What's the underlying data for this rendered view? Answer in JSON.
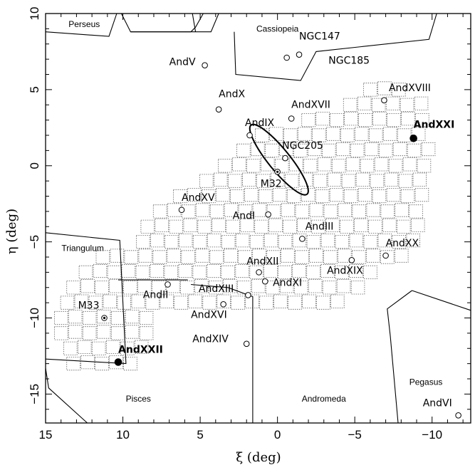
{
  "chart_data": {
    "type": "scatter",
    "xlabel": "ξ (deg)",
    "ylabel": "η (deg)",
    "xlim": [
      15,
      -12.5
    ],
    "ylim": [
      -16.9,
      10
    ],
    "xticks": [
      15,
      10,
      5,
      0,
      -5,
      -10
    ],
    "xtick_labels": [
      "15",
      "10",
      "5",
      "0",
      "−5",
      "−10"
    ],
    "yticks": [
      10,
      5,
      0,
      -5,
      -10,
      -15
    ],
    "ytick_labels": [
      "10",
      "5",
      "0",
      "−5",
      "−10",
      "−15"
    ],
    "colors": {
      "axis": "#000000",
      "fields": "#555555",
      "marker_fill": "#ffffff",
      "new_fill": "#000000"
    },
    "objects": [
      {
        "name": "NGC147",
        "x": -1.4,
        "y": 7.3,
        "marker": "open",
        "label_dx": 0,
        "label_dy": 1.0,
        "label_anchor": "start"
      },
      {
        "name": "NGC185",
        "x": -0.6,
        "y": 7.1,
        "marker": "open",
        "label_dx": -2.7,
        "label_dy": -0.4,
        "label_anchor": "start"
      },
      {
        "name": "AndV",
        "x": 4.7,
        "y": 6.6,
        "marker": "open",
        "label_dx": 2.3,
        "label_dy": 0,
        "label_anchor": "start"
      },
      {
        "name": "AndX",
        "x": 3.8,
        "y": 3.7,
        "marker": "open",
        "label_dx": 0,
        "label_dy": 0.8,
        "label_anchor": "start"
      },
      {
        "name": "AndXVIII",
        "x": -6.9,
        "y": 4.3,
        "marker": "open",
        "label_dx": -0.3,
        "label_dy": 0.6,
        "label_anchor": "start"
      },
      {
        "name": "AndXVII",
        "x": -0.9,
        "y": 3.1,
        "marker": "open",
        "label_dx": 0,
        "label_dy": 0.7,
        "label_anchor": "start"
      },
      {
        "name": "AndXXI",
        "x": -8.8,
        "y": 1.8,
        "marker": "filled",
        "label_dx": 0,
        "label_dy": 0.7,
        "label_anchor": "start"
      },
      {
        "name": "AndIX",
        "x": 1.8,
        "y": 2.0,
        "marker": "open",
        "label_dx": 0.3,
        "label_dy": 0.6,
        "label_anchor": "start"
      },
      {
        "name": "NGC205",
        "x": -0.5,
        "y": 0.5,
        "marker": "open",
        "label_dx": 0.2,
        "label_dy": 0.6,
        "label_anchor": "start"
      },
      {
        "name": "M32",
        "x": 0.0,
        "y": -0.4,
        "marker": "open",
        "label_dx": 1.1,
        "label_dy": -1.0,
        "label_anchor": "start"
      },
      {
        "name": "AndXV",
        "x": 6.2,
        "y": -2.9,
        "marker": "open",
        "label_dx": 0,
        "label_dy": 0.6,
        "label_anchor": "start"
      },
      {
        "name": "AndI",
        "x": 0.6,
        "y": -3.2,
        "marker": "open",
        "label_dx": 2.3,
        "label_dy": -0.3,
        "label_anchor": "start"
      },
      {
        "name": "AndIII",
        "x": -1.6,
        "y": -4.8,
        "marker": "open",
        "label_dx": -0.2,
        "label_dy": 0.6,
        "label_anchor": "start"
      },
      {
        "name": "AndXX",
        "x": -7.0,
        "y": -5.9,
        "marker": "open",
        "label_dx": 0,
        "label_dy": 0.6,
        "label_anchor": "start"
      },
      {
        "name": "AndXIX",
        "x": -4.8,
        "y": -6.2,
        "marker": "open",
        "label_dx": 1.6,
        "label_dy": -0.9,
        "label_anchor": "start"
      },
      {
        "name": "AndXII",
        "x": 1.2,
        "y": -7.0,
        "marker": "open",
        "label_dx": 0.8,
        "label_dy": 0.5,
        "label_anchor": "start"
      },
      {
        "name": "AndXI",
        "x": 0.8,
        "y": -7.6,
        "marker": "open",
        "label_dx": -0.5,
        "label_dy": -0.3,
        "label_anchor": "start"
      },
      {
        "name": "AndII",
        "x": 7.1,
        "y": -7.8,
        "marker": "open",
        "label_dx": 1.6,
        "label_dy": -0.9,
        "label_anchor": "start"
      },
      {
        "name": "AndXIII",
        "x": 1.9,
        "y": -8.5,
        "marker": "open",
        "label_dx": 3.2,
        "label_dy": 0.2,
        "label_anchor": "start"
      },
      {
        "name": "AndXVI",
        "x": 3.5,
        "y": -9.1,
        "marker": "open",
        "label_dx": 2.1,
        "label_dy": -0.9,
        "label_anchor": "start"
      },
      {
        "name": "M33",
        "x": 11.2,
        "y": -10.0,
        "marker": "open",
        "label_dx": 1.7,
        "label_dy": 0.6,
        "label_anchor": "start"
      },
      {
        "name": "AndXIV",
        "x": 2.0,
        "y": -11.7,
        "marker": "open",
        "label_dx": 3.5,
        "label_dy": 0.1,
        "label_anchor": "start"
      },
      {
        "name": "AndXXII",
        "x": 10.3,
        "y": -12.9,
        "marker": "filled",
        "label_dx": 0.0,
        "label_dy": 0.6,
        "label_anchor": "start"
      },
      {
        "name": "AndVI",
        "x": -11.7,
        "y": -16.4,
        "marker": "open",
        "label_dx": 2.3,
        "label_dy": 0.6,
        "label_anchor": "start"
      }
    ],
    "constellations": [
      {
        "name": "Perseus",
        "x": 12.5,
        "y": 9.1
      },
      {
        "name": "Cassiopeia",
        "x": 0.0,
        "y": 8.8
      },
      {
        "name": "Triangulum",
        "x": 12.6,
        "y": -5.6
      },
      {
        "name": "Pisces",
        "x": 9.0,
        "y": -15.5
      },
      {
        "name": "Andromeda",
        "x": -3.0,
        "y": -15.5
      },
      {
        "name": "Pegasus",
        "x": -9.6,
        "y": -14.4
      }
    ],
    "boundaries": [
      [
        [
          15,
          8.8
        ],
        [
          10.9,
          8.5
        ],
        [
          10.4,
          10
        ]
      ],
      [
        [
          10.1,
          10
        ],
        [
          9.5,
          8.8
        ],
        [
          4.3,
          8.8
        ],
        [
          3.8,
          10
        ]
      ],
      [
        [
          4.8,
          10
        ],
        [
          5.3,
          9.1
        ],
        [
          5.6,
          8.8
        ]
      ],
      [
        [
          9.5,
          8.8
        ],
        [
          5.6,
          8.8
        ]
      ],
      [
        [
          10.1,
          10
        ],
        [
          5.5,
          10
        ]
      ],
      [
        [
          5.5,
          10
        ],
        [
          5.3,
          8.8
        ]
      ],
      [
        [
          2.8,
          8.8
        ],
        [
          2.7,
          6.0
        ],
        [
          -1.5,
          5.6
        ],
        [
          -2.5,
          7.5
        ],
        [
          -9.8,
          8.3
        ],
        [
          -10.3,
          10
        ]
      ],
      [
        [
          15,
          -4.4
        ],
        [
          10.2,
          -4.9
        ],
        [
          9.8,
          -13.0
        ],
        [
          15,
          -12.7
        ]
      ],
      [
        [
          10.3,
          -7.5
        ],
        [
          5.8,
          -7.5
        ]
      ],
      [
        [
          5.6,
          -7.8
        ],
        [
          3.2,
          -8.0
        ],
        [
          1.6,
          -8.6
        ],
        [
          1.6,
          -16.9
        ]
      ],
      [
        [
          15,
          -13.3
        ],
        [
          14.8,
          -14.6
        ],
        [
          12.3,
          -16.9
        ]
      ],
      [
        [
          -8.7,
          -8.2
        ],
        [
          -12.5,
          -9.5
        ]
      ],
      [
        [
          -8.7,
          -8.2
        ],
        [
          -7.1,
          -9.4
        ],
        [
          -7.3,
          -11.2
        ],
        [
          -7.8,
          -16.9
        ]
      ]
    ],
    "ellipse": {
      "cx": -0.1,
      "cy": 0.4,
      "a": 2.9,
      "b": 0.7,
      "angle_deg": -51
    },
    "survey_fields": [
      {
        "row_y": 5.0,
        "x_from": -6.0,
        "x_to": -8.2
      },
      {
        "row_y": 4.0,
        "x_from": -4.7,
        "x_to": -9.3
      },
      {
        "row_y": 3.0,
        "x_from": -2.0,
        "x_to": -9.8
      },
      {
        "row_y": 2.0,
        "x_from": 1.0,
        "x_to": -9.9
      },
      {
        "row_y": 1.0,
        "x_from": 2.2,
        "x_to": -10.1
      },
      {
        "row_y": 0.0,
        "x_from": 3.4,
        "x_to": -10.2
      },
      {
        "row_y": -1.0,
        "x_from": 4.6,
        "x_to": -10.1
      },
      {
        "row_y": -2.0,
        "x_from": 6.3,
        "x_to": -10.0
      },
      {
        "row_y": -3.0,
        "x_from": 7.6,
        "x_to": -9.8
      },
      {
        "row_y": -4.0,
        "x_from": 8.4,
        "x_to": -9.7
      },
      {
        "row_y": -5.0,
        "x_from": 8.7,
        "x_to": -9.4
      },
      {
        "row_y": -6.0,
        "x_from": 11.3,
        "x_to": -8.4
      },
      {
        "row_y": -7.0,
        "x_from": 12.4,
        "x_to": -6.4
      },
      {
        "row_y": -8.0,
        "x_from": 13.2,
        "x_to": -5.3
      },
      {
        "row_y": -9.0,
        "x_from": 13.6,
        "x_to": -4.7
      },
      {
        "row_y": -10.0,
        "x_from": 14.0,
        "x_to": 7.6
      },
      {
        "row_y": -11.0,
        "x_from": 14.0,
        "x_to": 8.0
      },
      {
        "row_y": -12.0,
        "x_from": 13.4,
        "x_to": 8.3
      },
      {
        "row_y": -13.0,
        "x_from": 13.2,
        "x_to": 8.9
      }
    ]
  }
}
